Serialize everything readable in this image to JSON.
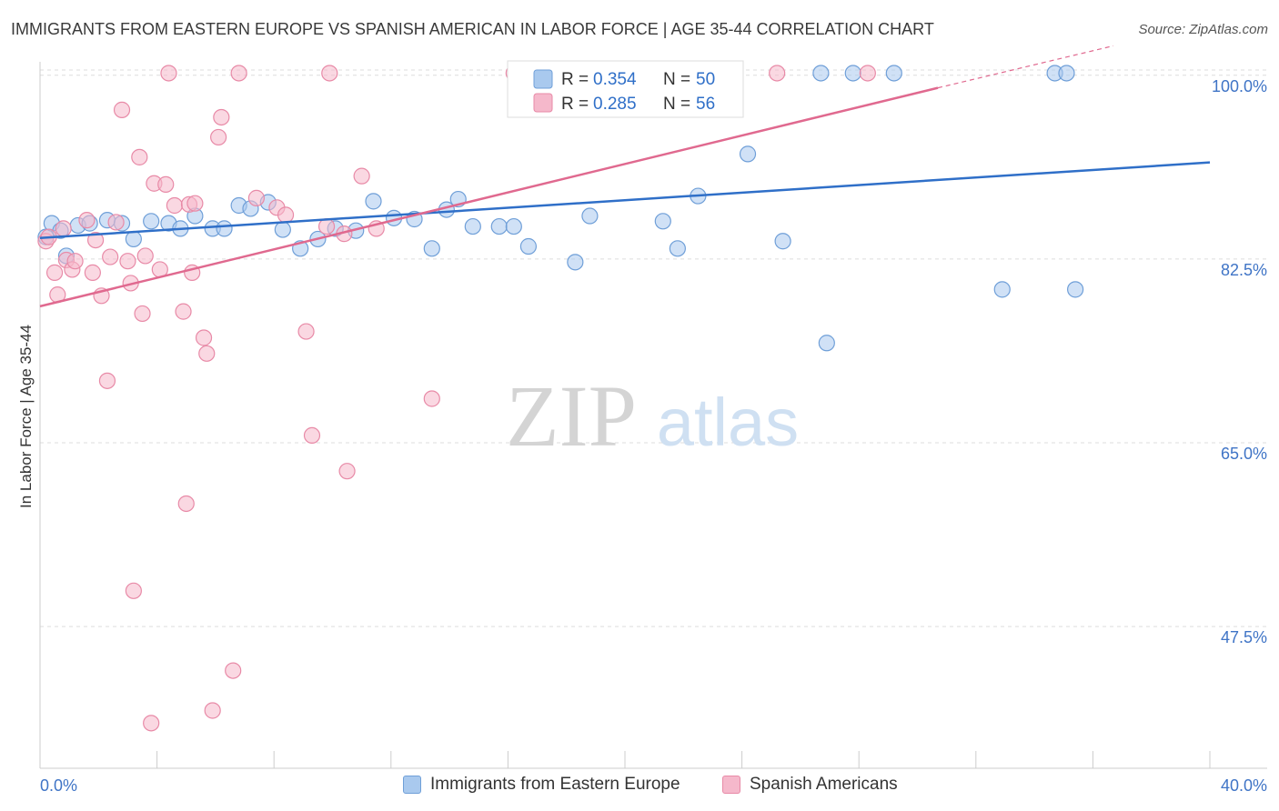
{
  "title": "IMMIGRANTS FROM EASTERN EUROPE VS SPANISH AMERICAN IN LABOR FORCE | AGE 35-44 CORRELATION CHART",
  "source": "Source: ZipAtlas.com",
  "watermark": {
    "zip": "ZIP",
    "atlas": "atlas"
  },
  "colors": {
    "blue_fill": "#a9c9ee",
    "blue_stroke": "#6f9fd8",
    "blue_line": "#2f6fc8",
    "pink_fill": "#f5b8cb",
    "pink_stroke": "#e88aa7",
    "pink_line": "#e0698f",
    "axis_label": "#3f74c6",
    "grid": "#dddddd"
  },
  "legend_box": {
    "rows": [
      {
        "r_label": "R =",
        "r_value": "0.354",
        "n_label": "N =",
        "n_value": "50"
      },
      {
        "r_label": "R =",
        "r_value": "0.285",
        "n_label": "N =",
        "n_value": "56"
      }
    ]
  },
  "chart_data": {
    "type": "scatter",
    "title": "IMMIGRANTS FROM EASTERN EUROPE VS SPANISH AMERICAN IN LABOR FORCE | AGE 35-44 CORRELATION CHART",
    "xlabel": "",
    "ylabel": "In Labor Force | Age 35-44",
    "xlim": [
      0,
      40
    ],
    "ylim": [
      34,
      100.5
    ],
    "x_tick_labels": [
      "0.0%",
      "40.0%"
    ],
    "y_ticks": [
      47.5,
      65.0,
      82.5,
      100.0
    ],
    "y_tick_labels": [
      "47.5%",
      "65.0%",
      "82.5%",
      "100.0%"
    ],
    "grid": true,
    "legend_position": "top-center",
    "series": [
      {
        "name": "Immigrants from Eastern Europe",
        "color": "#a9c9ee",
        "r": 0.354,
        "n": 50,
        "trend": {
          "x": [
            0,
            40
          ],
          "y": [
            84.5,
            91.7
          ]
        },
        "points": [
          [
            0.2,
            84.6
          ],
          [
            0.4,
            85.9
          ],
          [
            0.7,
            85.2
          ],
          [
            0.9,
            82.8
          ],
          [
            1.3,
            85.7
          ],
          [
            1.7,
            85.9
          ],
          [
            2.3,
            86.2
          ],
          [
            2.8,
            85.9
          ],
          [
            3.2,
            84.4
          ],
          [
            3.8,
            86.1
          ],
          [
            4.4,
            85.9
          ],
          [
            4.8,
            85.4
          ],
          [
            5.3,
            86.6
          ],
          [
            5.9,
            85.4
          ],
          [
            6.3,
            85.4
          ],
          [
            6.8,
            87.6
          ],
          [
            7.2,
            87.3
          ],
          [
            7.8,
            87.9
          ],
          [
            8.3,
            85.3
          ],
          [
            8.9,
            83.5
          ],
          [
            9.5,
            84.4
          ],
          [
            10.1,
            85.4
          ],
          [
            10.8,
            85.2
          ],
          [
            11.4,
            88.0
          ],
          [
            12.1,
            86.4
          ],
          [
            12.8,
            86.3
          ],
          [
            13.4,
            83.5
          ],
          [
            13.9,
            87.2
          ],
          [
            14.3,
            88.2
          ],
          [
            14.8,
            85.6
          ],
          [
            15.7,
            85.6
          ],
          [
            16.2,
            85.6
          ],
          [
            16.7,
            83.7
          ],
          [
            17.8,
            100.2
          ],
          [
            18.3,
            82.2
          ],
          [
            18.8,
            86.6
          ],
          [
            19.4,
            100.2
          ],
          [
            21.3,
            86.1
          ],
          [
            21.8,
            83.5
          ],
          [
            22.5,
            88.5
          ],
          [
            24.2,
            92.5
          ],
          [
            25.4,
            84.2
          ],
          [
            26.7,
            100.2
          ],
          [
            26.9,
            74.5
          ],
          [
            27.8,
            100.2
          ],
          [
            29.2,
            100.2
          ],
          [
            32.9,
            79.6
          ],
          [
            34.7,
            100.2
          ],
          [
            35.1,
            100.2
          ],
          [
            35.4,
            79.6
          ]
        ]
      },
      {
        "name": "Spanish Americans",
        "color": "#f5b8cb",
        "r": 0.285,
        "n": 56,
        "trend": {
          "x": [
            0,
            30.7
          ],
          "y": [
            78.0,
            98.8
          ],
          "dash_x": [
            30.7,
            36.7
          ],
          "dash_y": [
            98.8,
            102.8
          ]
        },
        "points": [
          [
            0.2,
            84.2
          ],
          [
            0.3,
            84.6
          ],
          [
            0.5,
            81.2
          ],
          [
            0.6,
            79.1
          ],
          [
            0.8,
            85.4
          ],
          [
            0.9,
            82.4
          ],
          [
            1.1,
            81.5
          ],
          [
            1.2,
            82.3
          ],
          [
            1.6,
            86.2
          ],
          [
            1.8,
            81.2
          ],
          [
            1.9,
            84.3
          ],
          [
            2.1,
            79.0
          ],
          [
            2.3,
            70.9
          ],
          [
            2.4,
            82.7
          ],
          [
            2.6,
            86.0
          ],
          [
            2.8,
            96.7
          ],
          [
            3.0,
            82.3
          ],
          [
            3.1,
            80.2
          ],
          [
            3.2,
            50.9
          ],
          [
            3.4,
            92.2
          ],
          [
            3.5,
            77.3
          ],
          [
            3.6,
            82.8
          ],
          [
            3.8,
            38.3
          ],
          [
            3.9,
            89.7
          ],
          [
            4.1,
            81.5
          ],
          [
            4.3,
            89.6
          ],
          [
            4.4,
            100.2
          ],
          [
            4.6,
            87.6
          ],
          [
            4.9,
            77.5
          ],
          [
            5.0,
            59.2
          ],
          [
            5.1,
            87.7
          ],
          [
            5.2,
            81.2
          ],
          [
            5.3,
            87.8
          ],
          [
            5.6,
            75.0
          ],
          [
            5.7,
            73.5
          ],
          [
            5.9,
            39.5
          ],
          [
            6.1,
            94.1
          ],
          [
            6.2,
            96.0
          ],
          [
            6.6,
            43.3
          ],
          [
            6.8,
            100.2
          ],
          [
            7.4,
            88.3
          ],
          [
            8.1,
            87.4
          ],
          [
            8.4,
            86.7
          ],
          [
            9.1,
            75.6
          ],
          [
            9.3,
            65.7
          ],
          [
            9.8,
            85.6
          ],
          [
            9.9,
            100.2
          ],
          [
            10.4,
            84.9
          ],
          [
            10.5,
            62.3
          ],
          [
            11.0,
            90.4
          ],
          [
            11.5,
            85.4
          ],
          [
            13.4,
            69.2
          ],
          [
            16.2,
            100.2
          ],
          [
            18.5,
            100.2
          ],
          [
            25.2,
            100.2
          ],
          [
            28.3,
            100.2
          ]
        ]
      }
    ]
  },
  "bottom_legend": [
    {
      "label": "Immigrants from Eastern Europe"
    },
    {
      "label": "Spanish Americans"
    }
  ]
}
